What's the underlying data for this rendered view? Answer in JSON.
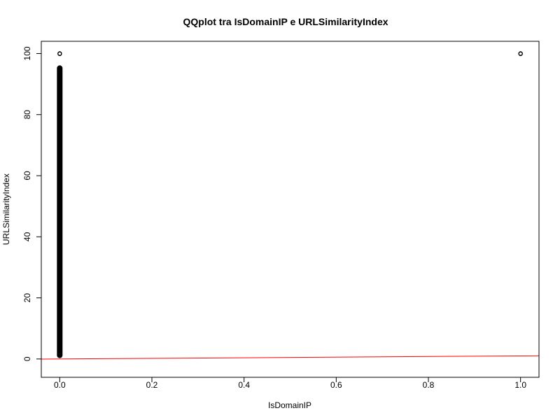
{
  "chart_data": {
    "type": "scatter",
    "title": "QQplot tra IsDomainIP e URLSimilarityIndex",
    "xlabel": "IsDomainIP",
    "ylabel": "URLSimilarityIndex",
    "xlim": [
      -0.04,
      1.04
    ],
    "ylim": [
      -6,
      104
    ],
    "x_ticks": [
      0,
      0.2,
      0.4,
      0.6,
      0.8,
      1
    ],
    "x_tick_labels": [
      "0.0",
      "0.2",
      "0.4",
      "0.6",
      "0.8",
      "1.0"
    ],
    "y_ticks": [
      0,
      20,
      40,
      60,
      80,
      100
    ],
    "y_tick_labels": [
      "0",
      "20",
      "40",
      "60",
      "80",
      "100"
    ],
    "grid": false,
    "series": [
      {
        "marker": "open-circle",
        "color": "#000000",
        "dense_segments": [
          {
            "x": 0,
            "y_min": 1.2,
            "y_max": 95.2
          }
        ],
        "points": [
          {
            "x": 0,
            "y": 100
          },
          {
            "x": 0,
            "y": 99.9
          },
          {
            "x": 1,
            "y": 100
          },
          {
            "x": 1,
            "y": 99.9
          }
        ]
      }
    ],
    "reference_line": {
      "color": "#ff0000",
      "intercept": 0,
      "slope": 1
    }
  }
}
